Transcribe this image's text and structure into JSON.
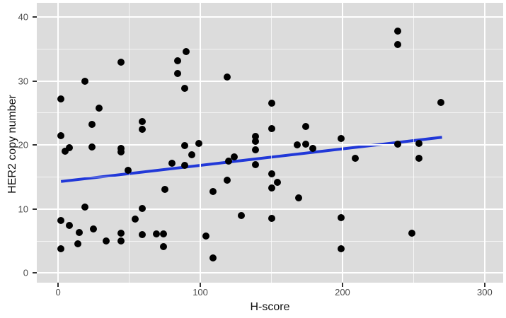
{
  "figure": {
    "background": "#ffffff",
    "panel_background": "#dcdcdc",
    "grid_color": "#ffffff",
    "point_color": "#000000",
    "trend_color": "#2138d8",
    "tick_text_color": "#4d4d4d"
  },
  "chart_data": {
    "type": "scatter",
    "title": "",
    "xlabel": "H-score",
    "ylabel": "HER2 copy number",
    "xlim": [
      -15,
      313
    ],
    "ylim": [
      -1.5,
      42.2
    ],
    "x_ticks": [
      0,
      100,
      200,
      300
    ],
    "y_ticks": [
      0,
      10,
      20,
      30,
      40
    ],
    "x_minor_gridlines": [
      50,
      150,
      250
    ],
    "y_minor_gridlines": [
      5,
      15,
      25,
      35
    ],
    "grid": true,
    "legend": false,
    "points": [
      [
        2,
        27.2
      ],
      [
        2,
        21.5
      ],
      [
        2,
        8.2
      ],
      [
        2,
        3.8
      ],
      [
        5,
        19.0
      ],
      [
        8,
        19.6
      ],
      [
        8,
        7.4
      ],
      [
        14,
        4.6
      ],
      [
        15,
        6.3
      ],
      [
        19,
        29.9
      ],
      [
        19,
        10.3
      ],
      [
        24,
        23.2
      ],
      [
        24,
        19.7
      ],
      [
        25,
        6.9
      ],
      [
        29,
        25.8
      ],
      [
        34,
        5.0
      ],
      [
        44,
        32.9
      ],
      [
        44,
        19.5
      ],
      [
        44,
        18.9
      ],
      [
        44,
        6.2
      ],
      [
        44,
        5.0
      ],
      [
        49,
        16.0
      ],
      [
        54,
        8.4
      ],
      [
        59,
        23.7
      ],
      [
        59,
        22.5
      ],
      [
        59,
        10.1
      ],
      [
        59,
        6.0
      ],
      [
        69,
        6.1
      ],
      [
        74,
        6.1
      ],
      [
        74,
        4.1
      ],
      [
        75,
        13.1
      ],
      [
        80,
        17.2
      ],
      [
        84,
        33.1
      ],
      [
        84,
        31.2
      ],
      [
        89,
        28.8
      ],
      [
        89,
        19.9
      ],
      [
        89,
        16.8
      ],
      [
        90,
        34.6
      ],
      [
        94,
        18.5
      ],
      [
        99,
        20.2
      ],
      [
        104,
        5.8
      ],
      [
        109,
        12.7
      ],
      [
        109,
        2.4
      ],
      [
        119,
        30.6
      ],
      [
        119,
        14.5
      ],
      [
        120,
        17.5
      ],
      [
        124,
        18.1
      ],
      [
        129,
        9.0
      ],
      [
        139,
        21.3
      ],
      [
        139,
        20.6
      ],
      [
        139,
        19.3
      ],
      [
        139,
        16.9
      ],
      [
        150,
        26.5
      ],
      [
        150,
        22.6
      ],
      [
        150,
        15.5
      ],
      [
        150,
        13.3
      ],
      [
        150,
        8.5
      ],
      [
        154,
        14.2
      ],
      [
        168,
        20.0
      ],
      [
        169,
        11.7
      ],
      [
        174,
        22.9
      ],
      [
        174,
        20.1
      ],
      [
        179,
        19.5
      ],
      [
        199,
        21.0
      ],
      [
        199,
        8.6
      ],
      [
        199,
        3.8
      ],
      [
        209,
        17.9
      ],
      [
        239,
        37.8
      ],
      [
        239,
        35.7
      ],
      [
        239,
        20.1
      ],
      [
        249,
        6.2
      ],
      [
        254,
        20.2
      ],
      [
        254,
        17.9
      ],
      [
        269,
        26.6
      ]
    ],
    "trend_line": {
      "type": "linear-fit",
      "x1": 2,
      "y1": 14.3,
      "x2": 270,
      "y2": 21.2,
      "color": "#2138d8"
    }
  }
}
